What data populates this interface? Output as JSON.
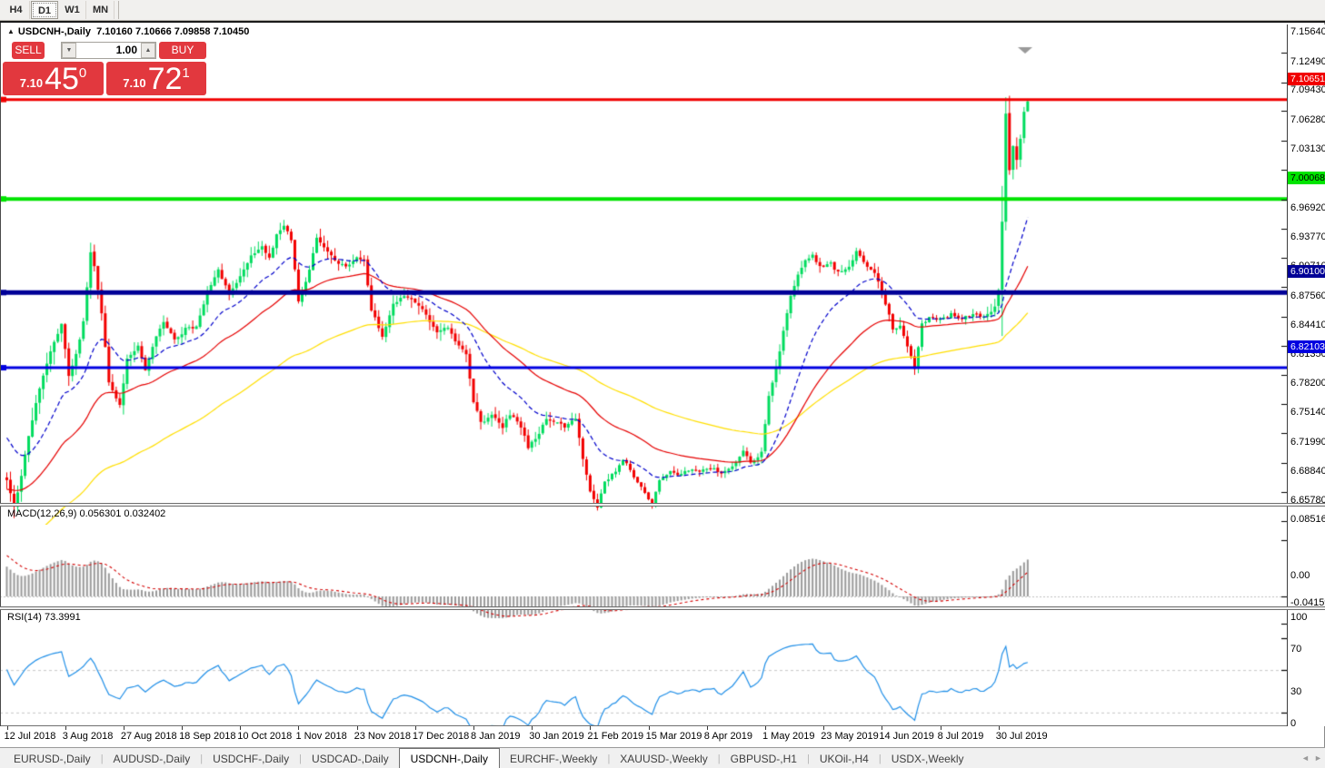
{
  "toolbar": {
    "timeframes": [
      {
        "label": "H4",
        "active": false
      },
      {
        "label": "D1",
        "active": true
      },
      {
        "label": "W1",
        "active": false
      },
      {
        "label": "MN",
        "active": false
      }
    ]
  },
  "chart_header": {
    "marker": "▲",
    "symbol": "USDCNH-,Daily",
    "ohlc": "7.10160 7.10666 7.09858 7.10450"
  },
  "trade_panel": {
    "sell_label": "SELL",
    "buy_label": "BUY",
    "volume": "1.00",
    "spinner_down": "▼",
    "spinner_up": "▲",
    "sell_small": "7.10",
    "sell_big": "45",
    "sell_sup": "0",
    "buy_small": "7.10",
    "buy_big": "72",
    "buy_sup": "1",
    "panel_color": "#e2383e"
  },
  "indicators": {
    "macd_label": "MACD(12,26,9)",
    "macd_values": "0.056301 0.032402",
    "rsi_label": "RSI(14)",
    "rsi_value": "73.3991"
  },
  "price_axis": {
    "ticks": [
      "7.15640",
      "7.12490",
      "7.09430",
      "7.06280",
      "7.03130",
      "6.99980",
      "6.96920",
      "6.93770",
      "6.90710",
      "6.87560",
      "6.84410",
      "6.81350",
      "6.78200",
      "6.75140",
      "6.71990",
      "6.68840",
      "6.65780"
    ]
  },
  "macd_axis": {
    "ticks": [
      {
        "text": "0.085164",
        "value": 0.085164
      },
      {
        "text": "0.00",
        "value": 0
      },
      {
        "text": "-0.04159",
        "value": -0.04159
      }
    ]
  },
  "rsi_axis": {
    "ticks": [
      {
        "text": "100",
        "value": 100
      },
      {
        "text": "70",
        "value": 70
      },
      {
        "text": "30",
        "value": 30
      },
      {
        "text": "0",
        "value": 0
      }
    ]
  },
  "hlines": [
    {
      "price": 7.10651,
      "label": "7.10651",
      "color": "#f10000",
      "text_color": "#ffffff",
      "width": 3
    },
    {
      "price": 7.00068,
      "label": "7.00068",
      "color": "#00e400",
      "text_color": "#000000",
      "width": 4
    },
    {
      "price": 6.901,
      "label": "6.90100",
      "color": "#000097",
      "text_color": "#ffffff",
      "width": 5
    },
    {
      "price": 6.82103,
      "label": "6.82103",
      "color": "#0000e0",
      "text_color": "#ffffff",
      "width": 3
    }
  ],
  "tabs": {
    "items": [
      {
        "label": "EURUSD-,Daily",
        "active": false
      },
      {
        "label": "AUDUSD-,Daily",
        "active": false
      },
      {
        "label": "USDCHF-,Daily",
        "active": false
      },
      {
        "label": "USDCAD-,Daily",
        "active": false
      },
      {
        "label": "USDCNH-,Daily",
        "active": true
      },
      {
        "label": "EURCHF-,Weekly",
        "active": false
      },
      {
        "label": "XAUUSD-,Weekly",
        "active": false
      },
      {
        "label": "GBPUSD-,H1",
        "active": false
      },
      {
        "label": "UKOil-,H4",
        "active": false
      },
      {
        "label": "USDX-,Weekly",
        "active": false
      }
    ],
    "scroll_left": "◄",
    "scroll_right": "►"
  },
  "chart_data": {
    "type": "candlestick",
    "symbol": "USDCNH",
    "timeframe": "Daily",
    "title": "USDCNH-,Daily",
    "ohlc_current": {
      "open": 7.1016,
      "high": 7.10666,
      "low": 7.09858,
      "close": 7.1045
    },
    "y_range": {
      "top": 7.1564,
      "bottom": 6.6578
    },
    "x_axis_dates": [
      "12 Jul 2018",
      "3 Aug 2018",
      "27 Aug 2018",
      "18 Sep 2018",
      "10 Oct 2018",
      "1 Nov 2018",
      "23 Nov 2018",
      "17 Dec 2018",
      "8 Jan 2019",
      "30 Jan 2019",
      "21 Feb 2019",
      "15 Mar 2019",
      "8 Apr 2019",
      "1 May 2019",
      "23 May 2019",
      "14 Jun 2019",
      "8 Jul 2019",
      "30 Jul 2019"
    ],
    "bars_per_label": 16,
    "n_candles": 281,
    "up_color": "#00dc5e",
    "down_color": "#f20000",
    "price_path": [
      [
        0,
        6.7
      ],
      [
        2,
        6.672
      ],
      [
        4,
        6.705
      ],
      [
        6,
        6.75
      ],
      [
        9,
        6.8
      ],
      [
        12,
        6.84
      ],
      [
        15,
        6.868
      ],
      [
        17,
        6.812
      ],
      [
        19,
        6.835
      ],
      [
        21,
        6.87
      ],
      [
        23,
        6.945
      ],
      [
        24,
        6.93
      ],
      [
        26,
        6.88
      ],
      [
        28,
        6.806
      ],
      [
        31,
        6.78
      ],
      [
        33,
        6.83
      ],
      [
        36,
        6.845
      ],
      [
        38,
        6.82
      ],
      [
        41,
        6.856
      ],
      [
        43,
        6.869
      ],
      [
        46,
        6.85
      ],
      [
        49,
        6.862
      ],
      [
        52,
        6.865
      ],
      [
        55,
        6.9
      ],
      [
        58,
        6.925
      ],
      [
        61,
        6.9
      ],
      [
        64,
        6.918
      ],
      [
        67,
        6.94
      ],
      [
        70,
        6.95
      ],
      [
        72,
        6.937
      ],
      [
        74,
        6.963
      ],
      [
        76,
        6.972
      ],
      [
        78,
        6.958
      ],
      [
        80,
        6.89
      ],
      [
        83,
        6.925
      ],
      [
        85,
        6.958
      ],
      [
        88,
        6.945
      ],
      [
        91,
        6.932
      ],
      [
        93,
        6.928
      ],
      [
        96,
        6.94
      ],
      [
        98,
        6.936
      ],
      [
        100,
        6.882
      ],
      [
        103,
        6.855
      ],
      [
        106,
        6.888
      ],
      [
        108,
        6.897
      ],
      [
        111,
        6.893
      ],
      [
        113,
        6.888
      ],
      [
        116,
        6.87
      ],
      [
        118,
        6.86
      ],
      [
        121,
        6.864
      ],
      [
        123,
        6.85
      ],
      [
        126,
        6.836
      ],
      [
        128,
        6.785
      ],
      [
        130,
        6.762
      ],
      [
        133,
        6.772
      ],
      [
        136,
        6.758
      ],
      [
        138,
        6.772
      ],
      [
        141,
        6.758
      ],
      [
        143,
        6.736
      ],
      [
        146,
        6.752
      ],
      [
        148,
        6.768
      ],
      [
        151,
        6.762
      ],
      [
        153,
        6.758
      ],
      [
        156,
        6.768
      ],
      [
        158,
        6.725
      ],
      [
        160,
        6.688
      ],
      [
        162,
        6.672
      ],
      [
        164,
        6.7
      ],
      [
        167,
        6.71
      ],
      [
        169,
        6.724
      ],
      [
        172,
        6.705
      ],
      [
        174,
        6.695
      ],
      [
        177,
        6.676
      ],
      [
        179,
        6.7
      ],
      [
        182,
        6.71
      ],
      [
        184,
        6.706
      ],
      [
        187,
        6.713
      ],
      [
        190,
        6.71
      ],
      [
        193,
        6.715
      ],
      [
        196,
        6.71
      ],
      [
        199,
        6.716
      ],
      [
        202,
        6.734
      ],
      [
        204,
        6.72
      ],
      [
        207,
        6.73
      ],
      [
        209,
        6.79
      ],
      [
        211,
        6.82
      ],
      [
        213,
        6.86
      ],
      [
        215,
        6.898
      ],
      [
        217,
        6.92
      ],
      [
        219,
        6.935
      ],
      [
        221,
        6.94
      ],
      [
        223,
        6.928
      ],
      [
        226,
        6.932
      ],
      [
        228,
        6.922
      ],
      [
        231,
        6.928
      ],
      [
        233,
        6.945
      ],
      [
        236,
        6.928
      ],
      [
        238,
        6.922
      ],
      [
        241,
        6.89
      ],
      [
        243,
        6.862
      ],
      [
        245,
        6.866
      ],
      [
        247,
        6.845
      ],
      [
        249,
        6.82
      ],
      [
        251,
        6.868
      ],
      [
        253,
        6.874
      ],
      [
        256,
        6.872
      ],
      [
        259,
        6.878
      ],
      [
        262,
        6.873
      ],
      [
        265,
        6.878
      ],
      [
        268,
        6.875
      ],
      [
        270,
        6.88
      ],
      [
        271,
        6.885
      ],
      [
        272,
        6.905
      ],
      [
        273,
        6.975
      ],
      [
        274,
        7.09
      ],
      [
        275,
        7.03
      ],
      [
        276,
        7.056
      ],
      [
        277,
        7.042
      ],
      [
        278,
        7.066
      ],
      [
        279,
        7.092
      ],
      [
        280,
        7.1045
      ]
    ],
    "volatility": [
      [
        0,
        0.013
      ],
      [
        10,
        0.014
      ],
      [
        24,
        0.013
      ],
      [
        32,
        0.01
      ],
      [
        50,
        0.0085
      ],
      [
        78,
        0.0095
      ],
      [
        100,
        0.009
      ],
      [
        126,
        0.01
      ],
      [
        142,
        0.008
      ],
      [
        158,
        0.009
      ],
      [
        166,
        0.006
      ],
      [
        180,
        0.005
      ],
      [
        200,
        0.0055
      ],
      [
        208,
        0.007
      ],
      [
        212,
        0.009
      ],
      [
        224,
        0.0075
      ],
      [
        240,
        0.008
      ],
      [
        247,
        0.01
      ],
      [
        252,
        0.0045
      ],
      [
        268,
        0.006
      ],
      [
        272,
        0.014
      ],
      [
        273,
        0.05
      ],
      [
        276,
        0.012
      ],
      [
        280,
        0.01
      ]
    ],
    "moving_averages": [
      {
        "period": 100,
        "color": "#ffdf00",
        "dash": null,
        "seed_offset": -0.07
      },
      {
        "period": 45,
        "color": "#e60000",
        "dash": null,
        "seed_offset": -0.01
      },
      {
        "period": 20,
        "color": "#0000cc",
        "dash": [
          5,
          3
        ],
        "seed_offset": 0.045
      }
    ],
    "macd": {
      "fast": 12,
      "slow": 26,
      "signal": 9,
      "hist_color": "#9a9a9a",
      "signal_color": "#d40000",
      "seed_slow_offset": -0.045,
      "seed_signal": 0.062,
      "axis_top": 0.085164,
      "axis_bottom": -0.04159,
      "current": 0.056301,
      "current_signal": 0.032402
    },
    "rsi": {
      "period": 14,
      "color": "#1f8fe8",
      "levels": [
        70,
        30
      ],
      "current": 73.3991
    },
    "hline_values": [
      7.10651,
      7.00068,
      6.901,
      6.82103
    ]
  }
}
